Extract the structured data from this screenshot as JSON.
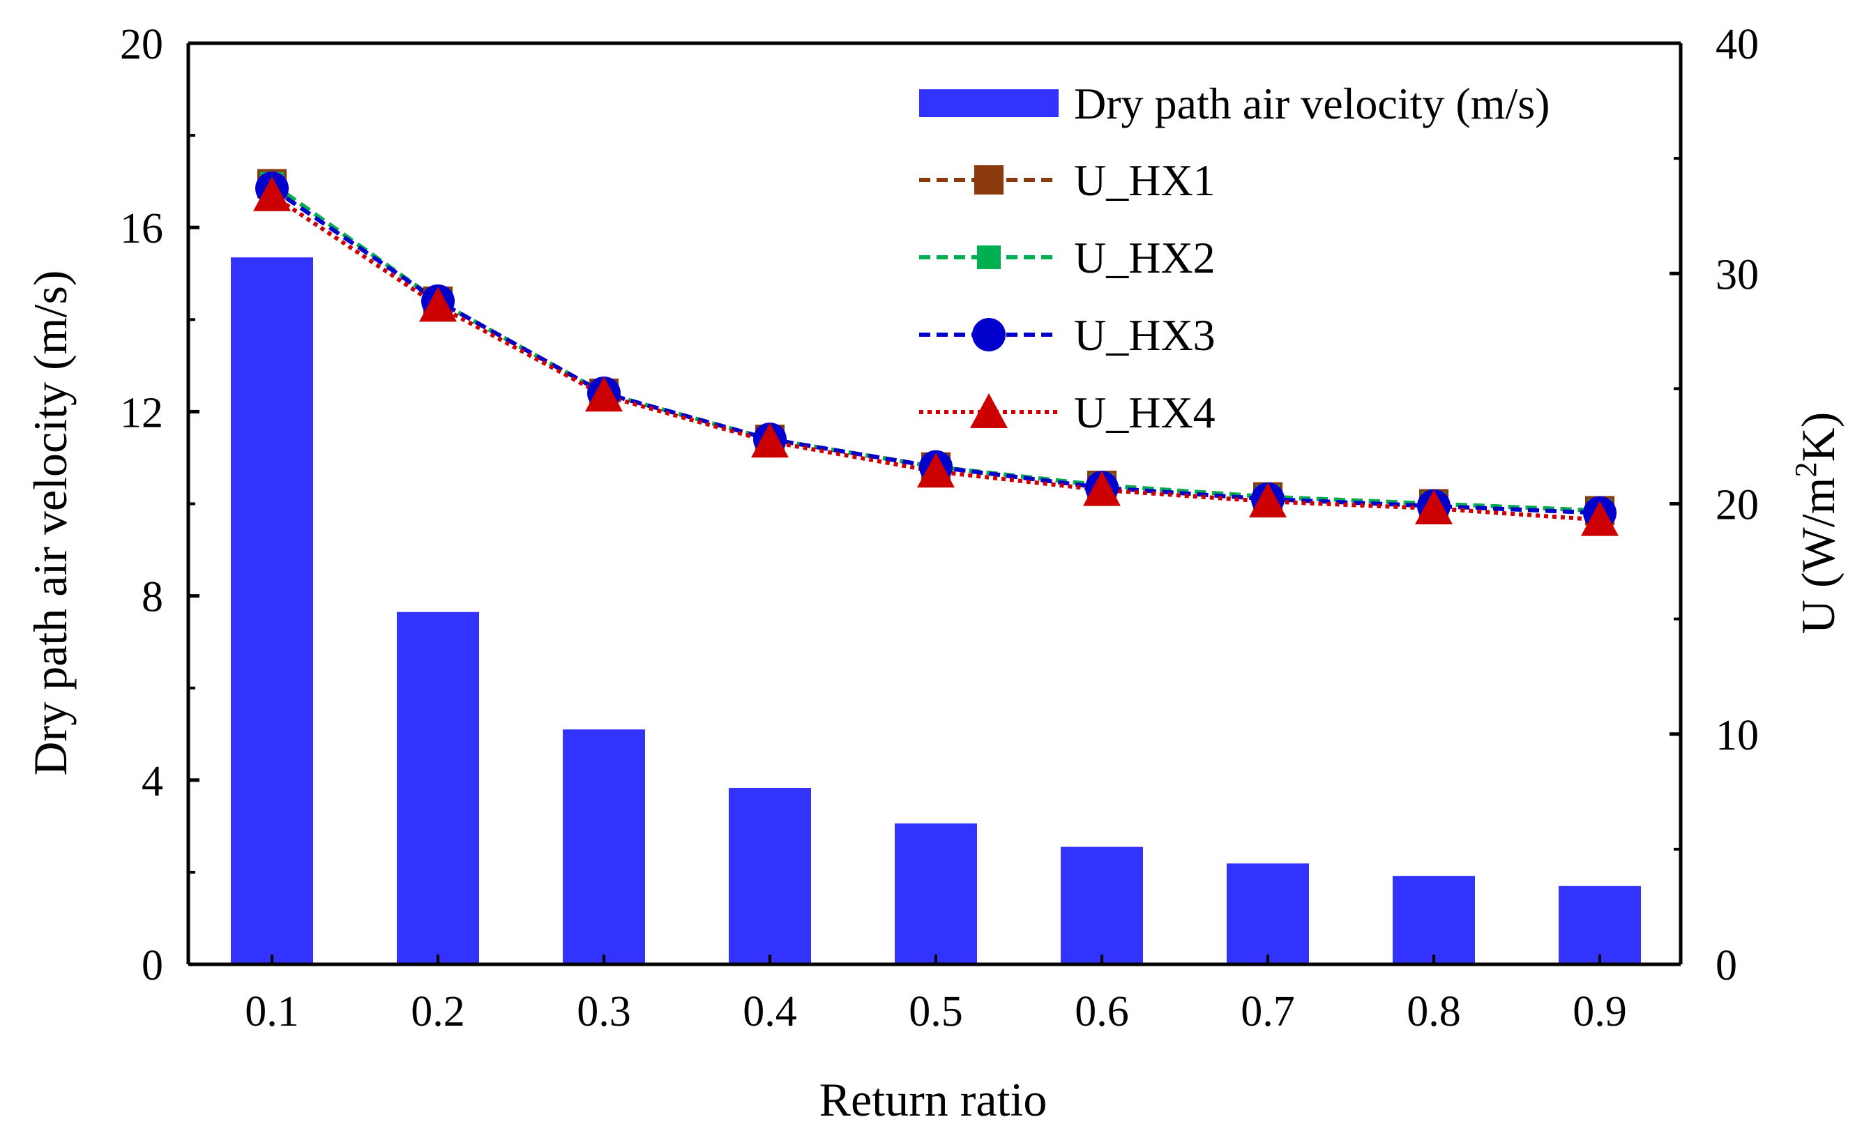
{
  "chart_data": {
    "type": "bar+line",
    "xlabel": "Return ratio",
    "ylabel_left": "Dry path air velocity (m/s)",
    "ylabel_right": {
      "prefix": "U (W/m",
      "sup": "2",
      "suffix": "K)"
    },
    "categories": [
      "0.1",
      "0.2",
      "0.3",
      "0.4",
      "0.5",
      "0.6",
      "0.7",
      "0.8",
      "0.9"
    ],
    "ylim_left": [
      0,
      20
    ],
    "yticks_left": [
      "0",
      "4",
      "8",
      "12",
      "16",
      "20"
    ],
    "ylim_right": [
      0,
      40
    ],
    "yticks_right": [
      "0",
      "10",
      "20",
      "30",
      "40"
    ],
    "bar_series": {
      "name": "Dry path air velocity (m/s)",
      "color": "#3333ff",
      "values": [
        15.35,
        7.65,
        5.1,
        3.83,
        3.06,
        2.55,
        2.19,
        1.92,
        1.7
      ]
    },
    "line_series": [
      {
        "name": "U_HX1",
        "color": "#8b3a0e",
        "marker": "square",
        "dash": "dashed",
        "values": [
          33.9,
          28.8,
          24.8,
          22.8,
          21.6,
          20.8,
          20.3,
          20.0,
          19.7
        ]
      },
      {
        "name": "U_HX2",
        "color": "#00b050",
        "marker": "square-small",
        "dash": "dashed",
        "values": [
          33.9,
          28.8,
          24.8,
          22.8,
          21.6,
          20.8,
          20.3,
          20.0,
          19.7
        ]
      },
      {
        "name": "U_HX3",
        "color": "#0000cc",
        "marker": "circle",
        "dash": "dashed",
        "values": [
          33.7,
          28.8,
          24.8,
          22.8,
          21.6,
          20.7,
          20.2,
          19.9,
          19.6
        ]
      },
      {
        "name": "U_HX4",
        "color": "#cc0000",
        "marker": "triangle",
        "dash": "dotted",
        "values": [
          33.4,
          28.6,
          24.7,
          22.7,
          21.4,
          20.6,
          20.1,
          19.8,
          19.3
        ]
      }
    ],
    "legend_position": "top-right"
  }
}
